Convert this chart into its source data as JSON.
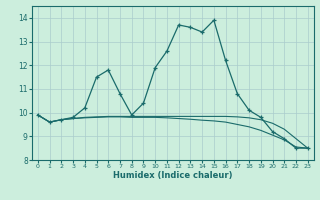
{
  "title": "",
  "xlabel": "Humidex (Indice chaleur)",
  "ylabel": "",
  "background_color": "#cceedd",
  "line_color": "#1a6b6b",
  "grid_color": "#aacccc",
  "x": [
    0,
    1,
    2,
    3,
    4,
    5,
    6,
    7,
    8,
    9,
    10,
    11,
    12,
    13,
    14,
    15,
    16,
    17,
    18,
    19,
    20,
    21,
    22,
    23
  ],
  "y_main": [
    9.9,
    9.6,
    9.7,
    9.8,
    10.2,
    11.5,
    11.8,
    10.8,
    9.9,
    10.4,
    11.9,
    12.6,
    13.7,
    13.6,
    13.4,
    13.9,
    12.2,
    10.8,
    10.1,
    9.8,
    9.2,
    8.9,
    8.5,
    8.5
  ],
  "y_line2": [
    9.9,
    9.6,
    9.7,
    9.75,
    9.78,
    9.8,
    9.82,
    9.82,
    9.8,
    9.8,
    9.8,
    9.78,
    9.75,
    9.72,
    9.68,
    9.65,
    9.6,
    9.5,
    9.4,
    9.25,
    9.05,
    8.85,
    8.55,
    8.5
  ],
  "y_line3": [
    9.9,
    9.6,
    9.7,
    9.75,
    9.8,
    9.82,
    9.84,
    9.84,
    9.84,
    9.84,
    9.84,
    9.84,
    9.84,
    9.84,
    9.84,
    9.84,
    9.84,
    9.82,
    9.78,
    9.7,
    9.55,
    9.3,
    8.9,
    8.5
  ],
  "ylim": [
    8.0,
    14.5
  ],
  "xlim": [
    -0.5,
    23.5
  ],
  "yticks": [
    8,
    9,
    10,
    11,
    12,
    13,
    14
  ],
  "xticks": [
    0,
    1,
    2,
    3,
    4,
    5,
    6,
    7,
    8,
    9,
    10,
    11,
    12,
    13,
    14,
    15,
    16,
    17,
    18,
    19,
    20,
    21,
    22,
    23
  ]
}
